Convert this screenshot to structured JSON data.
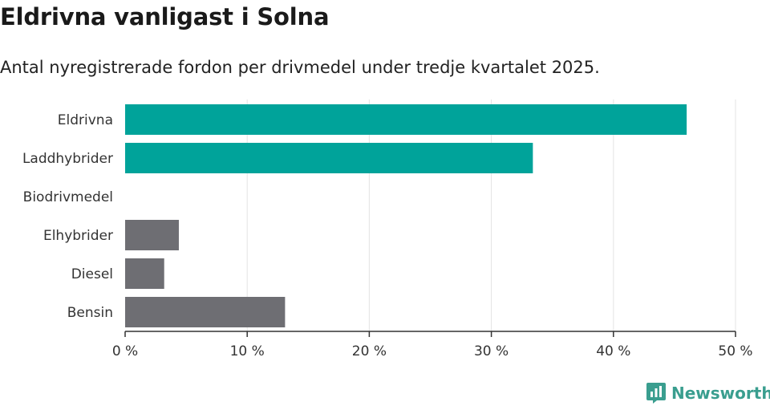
{
  "chart_data": {
    "type": "bar",
    "orientation": "horizontal",
    "title": "Eldrivna vanligast i Solna",
    "subtitle": "Antal nyregistrerade fordon per drivmedel under tredje kvartalet 2025.",
    "categories": [
      "Eldrivna",
      "Laddhybrider",
      "Biodrivmedel",
      "Elhybrider",
      "Diesel",
      "Bensin"
    ],
    "values": [
      46,
      33.4,
      0,
      4.4,
      3.2,
      13.1
    ],
    "highlighted": [
      true,
      true,
      false,
      false,
      false,
      false
    ],
    "xlim": [
      0,
      50
    ],
    "xticks": [
      0,
      10,
      20,
      30,
      40,
      50
    ],
    "xtick_labels": [
      "0 %",
      "10 %",
      "20 %",
      "30 %",
      "40 %",
      "50 %"
    ],
    "xlabel": "",
    "ylabel": "",
    "grid": true,
    "colors": {
      "highlight": "#00a39a",
      "default": "#6e6e73",
      "grid": "#e3e3e3",
      "axis": "#333333"
    }
  },
  "brand": {
    "name": "Newsworthy",
    "icon": "newsworthy-logo-icon",
    "color": "#3a9e8f"
  }
}
